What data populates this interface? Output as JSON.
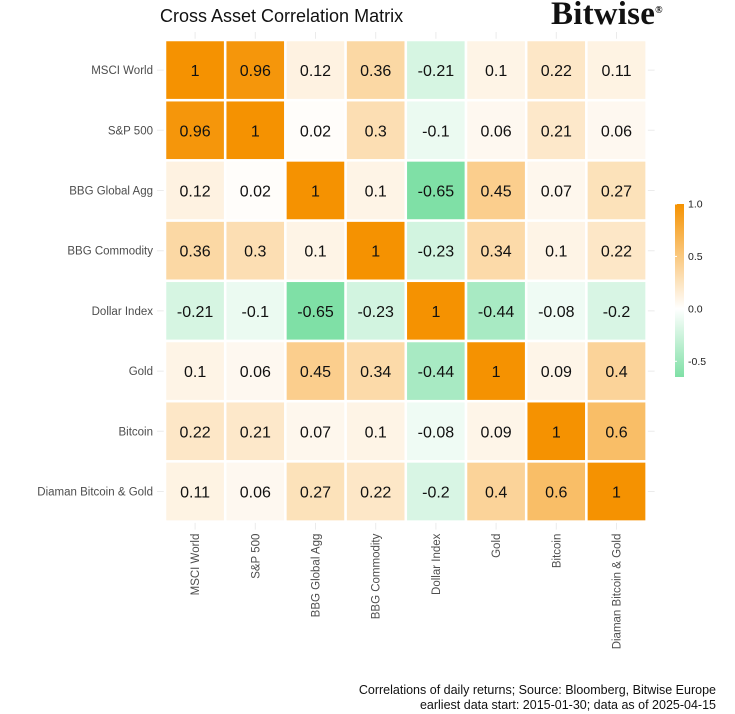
{
  "brand": "Bitwise",
  "brand_mark": "®",
  "footer": {
    "line1": "Correlations of daily returns; Source: Bloomberg, Bitwise Europe",
    "line2": "earliest data start: 2015-01-30; data as of 2025-04-15"
  },
  "colors": {
    "high": "#F59201",
    "mid": "#FFFFFF",
    "low": "#7FE0A6",
    "grid": "#EBEBEB",
    "cell_border": "#FFFFFF",
    "text": "#111111",
    "axis_text": "#4D4D4D"
  },
  "chart_data": {
    "type": "heatmap",
    "title": "Cross Asset Correlation Matrix",
    "xlabel": "",
    "ylabel": "",
    "row_labels": [
      "MSCI World",
      "S&P 500",
      "BBG Global Agg",
      "BBG Commodity",
      "Dollar Index",
      "Gold",
      "Bitcoin",
      "Diaman Bitcoin & Gold"
    ],
    "col_labels": [
      "MSCI World",
      "S&P 500",
      "BBG Global Agg",
      "BBG Commodity",
      "Dollar Index",
      "Gold",
      "Bitcoin",
      "Diaman Bitcoin & Gold"
    ],
    "values": [
      [
        1,
        0.96,
        0.12,
        0.36,
        -0.21,
        0.1,
        0.22,
        0.11
      ],
      [
        0.96,
        1,
        0.02,
        0.3,
        -0.1,
        0.06,
        0.21,
        0.06
      ],
      [
        0.12,
        0.02,
        1,
        0.1,
        -0.65,
        0.45,
        0.07,
        0.27
      ],
      [
        0.36,
        0.3,
        0.1,
        1,
        -0.23,
        0.34,
        0.1,
        0.22
      ],
      [
        -0.21,
        -0.1,
        -0.65,
        -0.23,
        1,
        -0.44,
        -0.08,
        -0.2
      ],
      [
        0.1,
        0.06,
        0.45,
        0.34,
        -0.44,
        1,
        0.09,
        0.4
      ],
      [
        0.22,
        0.21,
        0.07,
        0.1,
        -0.08,
        0.09,
        1,
        0.6
      ],
      [
        0.11,
        0.06,
        0.27,
        0.22,
        -0.2,
        0.4,
        0.6,
        1
      ]
    ],
    "value_labels": [
      [
        "1",
        "0.96",
        "0.12",
        "0.36",
        "-0.21",
        "0.1",
        "0.22",
        "0.11"
      ],
      [
        "0.96",
        "1",
        "0.02",
        "0.3",
        "-0.1",
        "0.06",
        "0.21",
        "0.06"
      ],
      [
        "0.12",
        "0.02",
        "1",
        "0.1",
        "-0.65",
        "0.45",
        "0.07",
        "0.27"
      ],
      [
        "0.36",
        "0.3",
        "0.1",
        "1",
        "-0.23",
        "0.34",
        "0.1",
        "0.22"
      ],
      [
        "-0.21",
        "-0.1",
        "-0.65",
        "-0.23",
        "1",
        "-0.44",
        "-0.08",
        "-0.2"
      ],
      [
        "0.1",
        "0.06",
        "0.45",
        "0.34",
        "-0.44",
        "1",
        "0.09",
        "0.4"
      ],
      [
        "0.22",
        "0.21",
        "0.07",
        "0.1",
        "-0.08",
        "0.09",
        "1",
        "0.6"
      ],
      [
        "0.11",
        "0.06",
        "0.27",
        "0.22",
        "-0.2",
        "0.4",
        "0.6",
        "1"
      ]
    ],
    "color_scale": {
      "min": -0.65,
      "max": 1,
      "midpoint": 0
    },
    "legend": {
      "ticks": [
        1.0,
        0.5,
        0.0,
        -0.5
      ],
      "tick_labels": [
        "1.0",
        "0.5",
        "0.0",
        "-0.5"
      ],
      "placement": "right"
    }
  }
}
